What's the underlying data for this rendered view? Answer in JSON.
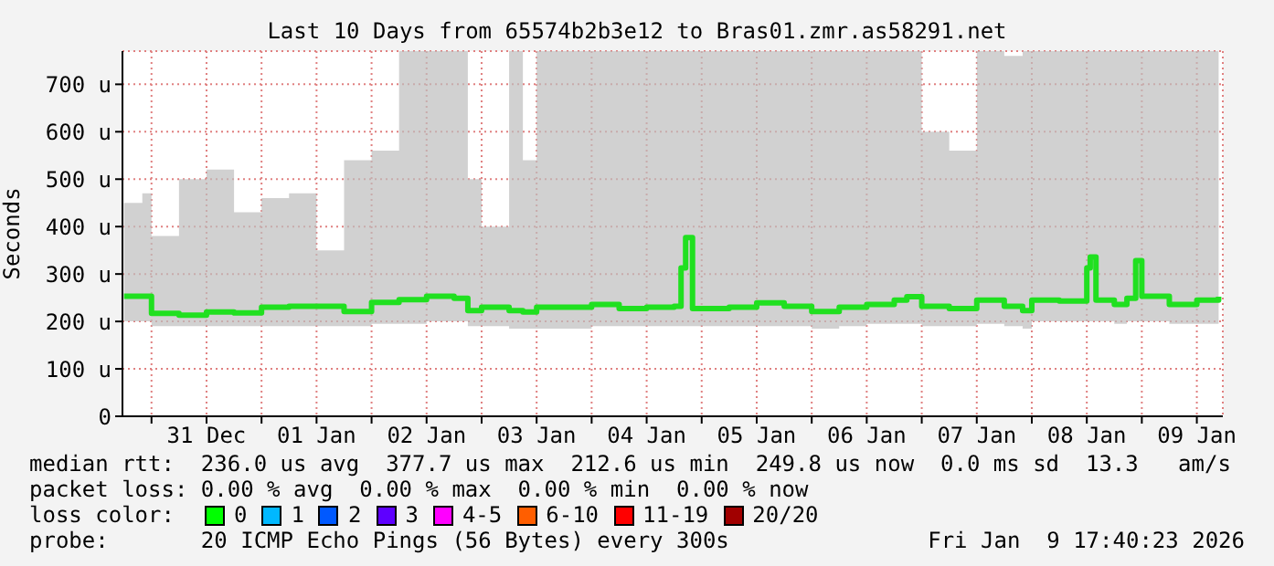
{
  "chart_data": {
    "type": "step",
    "title": "Last 10 Days from 65574b2b3e12 to Bras01.zmr.as58291.net",
    "ylabel": "Seconds",
    "xlim": [
      "2025-12-30T17:40",
      "2026-01-09T17:40"
    ],
    "xticks": [
      {
        "value": "2025-12-31T00:00",
        "label": null
      },
      {
        "value": "2025-12-31T12:00",
        "label": "31 Dec"
      },
      {
        "value": "2026-01-01T00:00",
        "label": null
      },
      {
        "value": "2026-01-01T12:00",
        "label": "01 Jan"
      },
      {
        "value": "2026-01-02T00:00",
        "label": null
      },
      {
        "value": "2026-01-02T12:00",
        "label": "02 Jan"
      },
      {
        "value": "2026-01-03T00:00",
        "label": null
      },
      {
        "value": "2026-01-03T12:00",
        "label": "03 Jan"
      },
      {
        "value": "2026-01-04T00:00",
        "label": null
      },
      {
        "value": "2026-01-04T12:00",
        "label": "04 Jan"
      },
      {
        "value": "2026-01-05T00:00",
        "label": null
      },
      {
        "value": "2026-01-05T12:00",
        "label": "05 Jan"
      },
      {
        "value": "2026-01-06T00:00",
        "label": null
      },
      {
        "value": "2026-01-06T12:00",
        "label": "06 Jan"
      },
      {
        "value": "2026-01-07T00:00",
        "label": null
      },
      {
        "value": "2026-01-07T12:00",
        "label": "07 Jan"
      },
      {
        "value": "2026-01-08T00:00",
        "label": null
      },
      {
        "value": "2026-01-08T12:00",
        "label": "08 Jan"
      },
      {
        "value": "2026-01-09T00:00",
        "label": null
      },
      {
        "value": "2026-01-09T12:00",
        "label": "09 Jan"
      }
    ],
    "ylim": [
      0,
      770
    ],
    "yticks": [
      0,
      {
        "value": 100,
        "label": "100 u"
      },
      {
        "value": 200,
        "label": "200 u"
      },
      {
        "value": 300,
        "label": "300 u"
      },
      {
        "value": 400,
        "label": "400 u"
      },
      {
        "value": 500,
        "label": "500 u"
      },
      {
        "value": 600,
        "label": "600 u"
      },
      {
        "value": 700,
        "label": "700 u"
      }
    ],
    "grid": true,
    "legend": false,
    "x": [
      "2025-12-30T18:00",
      "2025-12-30T22:00",
      "2025-12-31T00:00",
      "2025-12-31T06:00",
      "2025-12-31T12:00",
      "2025-12-31T18:00",
      "2026-01-01T00:00",
      "2026-01-01T06:00",
      "2026-01-01T12:00",
      "2026-01-01T18:00",
      "2026-01-02T00:00",
      "2026-01-02T06:00",
      "2026-01-02T12:00",
      "2026-01-02T18:00",
      "2026-01-02T21:00",
      "2026-01-03T00:00",
      "2026-01-03T06:00",
      "2026-01-03T09:00",
      "2026-01-03T12:00",
      "2026-01-03T18:00",
      "2026-01-04T00:00",
      "2026-01-04T06:00",
      "2026-01-04T12:00",
      "2026-01-04T18:00",
      "2026-01-04T19:30",
      "2026-01-04T20:30",
      "2026-01-04T22:00",
      "2026-01-05T06:00",
      "2026-01-05T12:00",
      "2026-01-05T18:00",
      "2026-01-06T00:00",
      "2026-01-06T06:00",
      "2026-01-06T12:00",
      "2026-01-06T18:00",
      "2026-01-06T20:45",
      "2026-01-07T00:00",
      "2026-01-07T06:00",
      "2026-01-07T12:00",
      "2026-01-07T18:00",
      "2026-01-07T22:00",
      "2026-01-08T00:00",
      "2026-01-08T06:00",
      "2026-01-08T12:00",
      "2026-01-08T12:45",
      "2026-01-08T14:00",
      "2026-01-08T18:00",
      "2026-01-08T20:45",
      "2026-01-08T22:40",
      "2026-01-09T00:00",
      "2026-01-09T06:00",
      "2026-01-09T12:00",
      "2026-01-09T16:45"
    ],
    "series": [
      {
        "color": "#20e020",
        "values": [
          253,
          253,
          217,
          213,
          220,
          218,
          230,
          232,
          232,
          221,
          240,
          246,
          253,
          249,
          223,
          230,
          223,
          220,
          230,
          230,
          236,
          227,
          230,
          232,
          313,
          377,
          227,
          230,
          239,
          232,
          221,
          230,
          236,
          245,
          252,
          232,
          227,
          245,
          232,
          223,
          245,
          243,
          313,
          336,
          245,
          236,
          249,
          328,
          253,
          236,
          245,
          252
        ],
        "lower": [
          200,
          200,
          190,
          190,
          190,
          190,
          190,
          190,
          190,
          190,
          195,
          195,
          200,
          200,
          190,
          190,
          185,
          185,
          185,
          185,
          190,
          190,
          190,
          190,
          190,
          190,
          190,
          190,
          190,
          190,
          185,
          190,
          195,
          195,
          195,
          190,
          190,
          195,
          190,
          185,
          200,
          200,
          200,
          200,
          200,
          195,
          200,
          200,
          200,
          195,
          195,
          200
        ],
        "upper": [
          450,
          470,
          380,
          500,
          520,
          430,
          460,
          470,
          350,
          540,
          560,
          770,
          770,
          770,
          500,
          400,
          770,
          540,
          770,
          770,
          770,
          770,
          770,
          770,
          770,
          770,
          770,
          770,
          770,
          770,
          770,
          770,
          770,
          770,
          770,
          600,
          560,
          770,
          760,
          770,
          770,
          770,
          770,
          770,
          770,
          770,
          770,
          770,
          770,
          770,
          770,
          550
        ]
      }
    ],
    "annotations": [
      "median rtt:  236.0 us avg  377.7 us max  212.6 us min  249.8 us now  0.0 ms sd  13.3   am/s",
      "packet loss: 0.00 % avg  0.00 % max  0.00 % min  0.00 % now",
      "loss color:",
      "0",
      "1",
      "2",
      "3",
      "4-5",
      "6-10",
      "11-19",
      "20/20",
      "probe:       20 ICMP Echo Pings (56 Bytes) every 300s",
      "Fri Jan  9 17:40:23 2026"
    ]
  }
}
